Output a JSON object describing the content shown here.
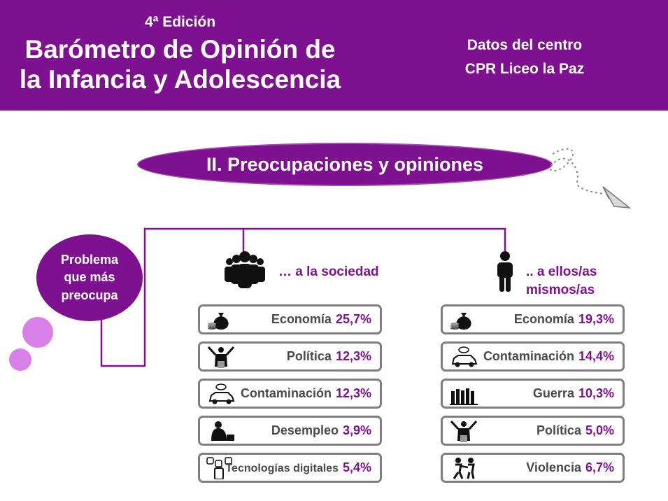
{
  "header": {
    "edition": "4ª Edición",
    "title_line1": "Barómetro de Opinión de",
    "title_line2": "la Infancia y Adolescencia",
    "center_label": "Datos del centro",
    "center_name": "CPR Liceo la Paz"
  },
  "section": {
    "title": "II. Preocupaciones y opiniones"
  },
  "bubble": {
    "line1": "Problema",
    "line2": "que más",
    "line3": "preocupa"
  },
  "society": {
    "label": "… a la sociedad",
    "items": [
      {
        "name": "Economía",
        "pct": "25,7%",
        "icon": "money-bag-icon"
      },
      {
        "name": "Política",
        "pct": "12,3%",
        "icon": "politician-icon"
      },
      {
        "name": "Contaminación",
        "pct": "12,3%",
        "icon": "polluting-car-icon"
      },
      {
        "name": "Desempleo",
        "pct": "3,9%",
        "icon": "unemployed-person-icon"
      },
      {
        "name": "Tecnologías digitales",
        "pct": "5,4%",
        "icon": "phone-social-media-icon"
      }
    ]
  },
  "self": {
    "label_line1": ".. a ellos/as",
    "label_line2": "mismos/as",
    "items": [
      {
        "name": "Economía",
        "pct": "19,3%",
        "icon": "money-bag-icon"
      },
      {
        "name": "Contaminación",
        "pct": "14,4%",
        "icon": "polluting-car-icon"
      },
      {
        "name": "Guerra",
        "pct": "10,3%",
        "icon": "war-soldiers-icon"
      },
      {
        "name": "Política",
        "pct": "5,0%",
        "icon": "politician-icon"
      },
      {
        "name": "Violencia",
        "pct": "6,7%",
        "icon": "violence-icon"
      }
    ]
  },
  "colors": {
    "purple": "#7d1190",
    "light_purple": "#d680e8",
    "box_border": "#7f7f7f",
    "text_gray": "#4a4a4a"
  }
}
